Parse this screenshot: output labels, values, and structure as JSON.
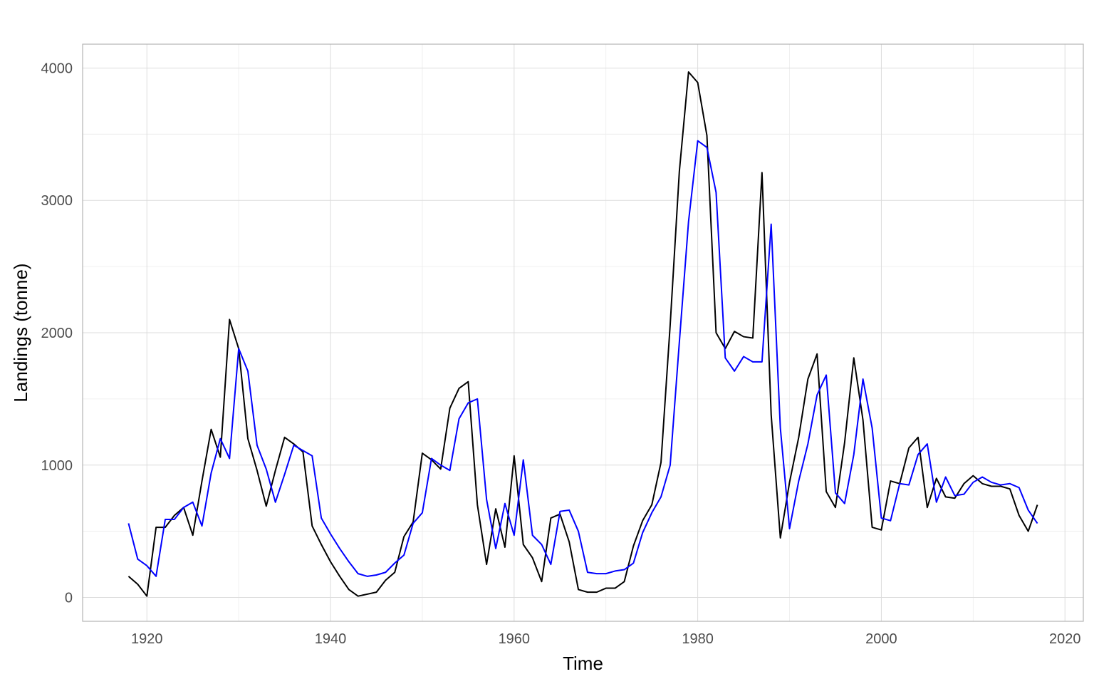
{
  "chart_data": {
    "type": "line",
    "title": "",
    "xlabel": "Time",
    "ylabel": "Landings (tonne)",
    "xlim": [
      1913,
      2022
    ],
    "ylim": [
      -180,
      4180
    ],
    "x_ticks": [
      1920,
      1940,
      1960,
      1980,
      2000,
      2020
    ],
    "y_ticks": [
      0,
      1000,
      2000,
      3000,
      4000
    ],
    "grid": true,
    "legend": "none",
    "series": [
      {
        "color": "#000000",
        "x": [
          1918,
          1919,
          1920,
          1921,
          1922,
          1923,
          1924,
          1925,
          1926,
          1927,
          1928,
          1929,
          1930,
          1931,
          1932,
          1933,
          1934,
          1935,
          1936,
          1937,
          1938,
          1939,
          1940,
          1941,
          1942,
          1943,
          1944,
          1945,
          1946,
          1947,
          1948,
          1949,
          1950,
          1951,
          1952,
          1953,
          1954,
          1955,
          1956,
          1957,
          1958,
          1959,
          1960,
          1961,
          1962,
          1963,
          1964,
          1965,
          1966,
          1967,
          1968,
          1969,
          1970,
          1971,
          1972,
          1973,
          1974,
          1975,
          1976,
          1977,
          1978,
          1979,
          1980,
          1981,
          1982,
          1983,
          1984,
          1985,
          1986,
          1987,
          1988,
          1989,
          1990,
          1991,
          1992,
          1993,
          1994,
          1995,
          1996,
          1997,
          1998,
          1999,
          2000,
          2001,
          2002,
          2003,
          2004,
          2005,
          2006,
          2007,
          2008,
          2009,
          2010,
          2011,
          2012,
          2013,
          2014,
          2015,
          2016,
          2017
        ],
        "y": [
          160,
          100,
          10,
          530,
          530,
          620,
          680,
          470,
          880,
          1270,
          1060,
          2100,
          1880,
          1200,
          960,
          690,
          960,
          1210,
          1160,
          1100,
          540,
          400,
          270,
          160,
          60,
          10,
          25,
          40,
          130,
          190,
          460,
          570,
          1090,
          1040,
          970,
          1430,
          1580,
          1630,
          700,
          250,
          670,
          380,
          1070,
          400,
          300,
          120,
          600,
          630,
          420,
          60,
          40,
          40,
          70,
          70,
          120,
          390,
          580,
          700,
          1020,
          2060,
          3220,
          3970,
          3890,
          3490,
          2000,
          1880,
          2010,
          1970,
          1960,
          3210,
          1380,
          450,
          870,
          1210,
          1650,
          1840,
          800,
          680,
          1170,
          1810,
          1340,
          530,
          510,
          880,
          860,
          1130,
          1210,
          680,
          900,
          760,
          750,
          860,
          920,
          860,
          840,
          840,
          820,
          620,
          500,
          700
        ]
      },
      {
        "color": "#0000ff",
        "x": [
          1918,
          1919,
          1920,
          1921,
          1922,
          1923,
          1924,
          1925,
          1926,
          1927,
          1928,
          1929,
          1930,
          1931,
          1932,
          1933,
          1934,
          1935,
          1936,
          1937,
          1938,
          1939,
          1940,
          1941,
          1942,
          1943,
          1944,
          1945,
          1946,
          1947,
          1948,
          1949,
          1950,
          1951,
          1952,
          1953,
          1954,
          1955,
          1956,
          1957,
          1958,
          1959,
          1960,
          1961,
          1962,
          1963,
          1964,
          1965,
          1966,
          1967,
          1968,
          1969,
          1970,
          1971,
          1972,
          1973,
          1974,
          1975,
          1976,
          1977,
          1978,
          1979,
          1980,
          1981,
          1982,
          1983,
          1984,
          1985,
          1986,
          1987,
          1988,
          1989,
          1990,
          1991,
          1992,
          1993,
          1994,
          1995,
          1996,
          1997,
          1998,
          1999,
          2000,
          2001,
          2002,
          2003,
          2004,
          2005,
          2006,
          2007,
          2008,
          2009,
          2010,
          2011,
          2012,
          2013,
          2014,
          2015,
          2016,
          2017
        ],
        "y": [
          560,
          290,
          240,
          160,
          590,
          590,
          680,
          720,
          540,
          940,
          1200,
          1050,
          1880,
          1710,
          1150,
          970,
          720,
          930,
          1150,
          1110,
          1070,
          600,
          480,
          370,
          270,
          180,
          160,
          170,
          190,
          260,
          320,
          560,
          640,
          1050,
          1000,
          960,
          1350,
          1470,
          1500,
          740,
          370,
          710,
          470,
          1040,
          470,
          400,
          250,
          650,
          660,
          500,
          190,
          180,
          180,
          200,
          210,
          260,
          490,
          640,
          760,
          1000,
          1930,
          2840,
          3450,
          3400,
          3060,
          1810,
          1710,
          1820,
          1780,
          1780,
          2820,
          1280,
          520,
          880,
          1160,
          1530,
          1680,
          790,
          710,
          1080,
          1650,
          1280,
          600,
          580,
          860,
          850,
          1080,
          1160,
          720,
          910,
          770,
          780,
          870,
          910,
          870,
          850,
          860,
          830,
          660,
          560
        ]
      }
    ]
  }
}
